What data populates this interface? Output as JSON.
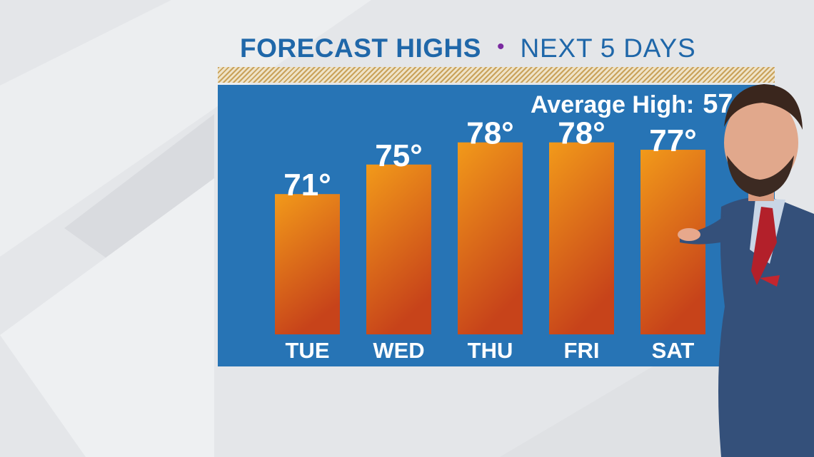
{
  "header": {
    "title": "FORECAST HIGHS",
    "separator": "•",
    "subtitle": "NEXT 5 DAYS"
  },
  "average": {
    "label": "Average High:",
    "value": "57"
  },
  "colors": {
    "panel": "#2774b5",
    "title": "#1f67a9",
    "dot": "#7a2aa0",
    "bar_top": "#f29a1a",
    "bar_bottom": "#c7431a"
  },
  "chart_data": {
    "type": "bar",
    "categories": [
      "TUE",
      "WED",
      "THU",
      "FRI",
      "SAT"
    ],
    "values": [
      71,
      75,
      78,
      78,
      77
    ],
    "value_labels": [
      "71°",
      "75°",
      "78°",
      "78°",
      "77°"
    ],
    "ylim": [
      52,
      80
    ],
    "grid": false,
    "legend": "none"
  }
}
